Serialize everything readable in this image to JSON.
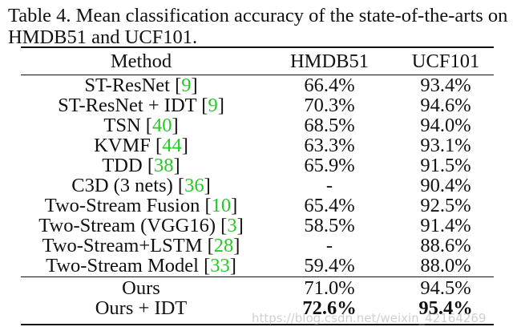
{
  "caption": "Table 4. Mean classification accuracy of the state-of-the-arts on HMDB51 and UCF101.",
  "headers": [
    "Method",
    "HMDB51",
    "UCF101"
  ],
  "rows": [
    {
      "method": "ST-ResNet [",
      "ref": "9",
      "hmdb": "66.4%",
      "ucf": "93.4%"
    },
    {
      "method": "ST-ResNet + IDT [",
      "ref": "9",
      "hmdb": "70.3%",
      "ucf": "94.6%"
    },
    {
      "method": "TSN [",
      "ref": "40",
      "hmdb": "68.5%",
      "ucf": "94.0%"
    },
    {
      "method": "KVMF [",
      "ref": "44",
      "hmdb": "63.3%",
      "ucf": "93.1%"
    },
    {
      "method": "TDD [",
      "ref": "38",
      "hmdb": "65.9%",
      "ucf": "91.5%"
    },
    {
      "method": "C3D (3 nets) [",
      "ref": "36",
      "hmdb": "-",
      "ucf": "90.4%"
    },
    {
      "method": "Two-Stream Fusion [",
      "ref": "10",
      "hmdb": "65.4%",
      "ucf": "92.5%"
    },
    {
      "method": "Two-Stream (VGG16) [",
      "ref": "3",
      "hmdb": "58.5%",
      "ucf": "91.4%"
    },
    {
      "method": "Two-Stream+LSTM [",
      "ref": "28",
      "hmdb": "-",
      "ucf": "88.6%"
    },
    {
      "method": "Two-Stream Model [",
      "ref": "33",
      "hmdb": "59.4%",
      "ucf": "88.0%"
    }
  ],
  "ours_rows": [
    {
      "method": "Ours",
      "hmdb": "71.0%",
      "ucf": "94.5%"
    },
    {
      "method": "Ours + IDT",
      "hmdb": "72.6%",
      "ucf": "95.4%"
    }
  ],
  "watermark": "https://blog.csdn.net/weixin_42164269",
  "colors": {
    "citation": "#22cc22",
    "text": "#111111"
  }
}
